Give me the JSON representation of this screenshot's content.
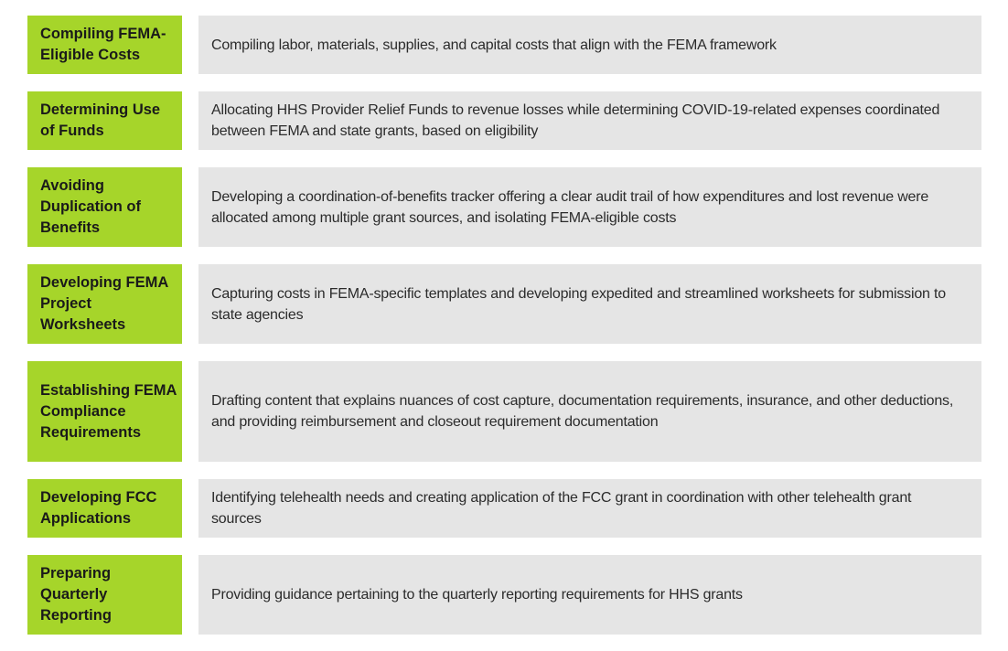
{
  "colors": {
    "label_bg": "#a6d52a",
    "desc_bg": "#e5e5e5",
    "label_text": "#1a1a1a",
    "desc_text": "#2b2b2b"
  },
  "rows": [
    {
      "label": "Compiling FEMA-Eligible Costs",
      "description": "Compiling labor, materials, supplies, and capital costs that align with the FEMA framework"
    },
    {
      "label": "Determining Use of Funds",
      "description": "Allocating HHS Provider Relief Funds to revenue losses while determining COVID-19-related expenses coordinated between FEMA and state grants, based on eligibility"
    },
    {
      "label": "Avoiding Duplication of Benefits",
      "description": "Developing a coordination-of-benefits tracker offering a clear audit trail of how expenditures and lost revenue were allocated among multiple grant sources, and isolating FEMA-eligible costs"
    },
    {
      "label": "Developing FEMA Project Worksheets",
      "description": "Capturing costs in FEMA-specific templates and developing expedited and streamlined worksheets for submission to state agencies"
    },
    {
      "label": "Establishing FEMA Compliance Requirements",
      "description": "Drafting content that explains nuances of cost capture, documentation requirements, insurance, and other deductions, and providing reimbursement and closeout requirement documentation"
    },
    {
      "label": "Developing FCC Applications",
      "description": "Identifying telehealth needs and creating application of the FCC grant in coordination with other telehealth grant sources"
    },
    {
      "label": "Preparing Quarterly Reporting",
      "description": "Providing guidance pertaining to the quarterly reporting requirements for HHS grants"
    }
  ]
}
